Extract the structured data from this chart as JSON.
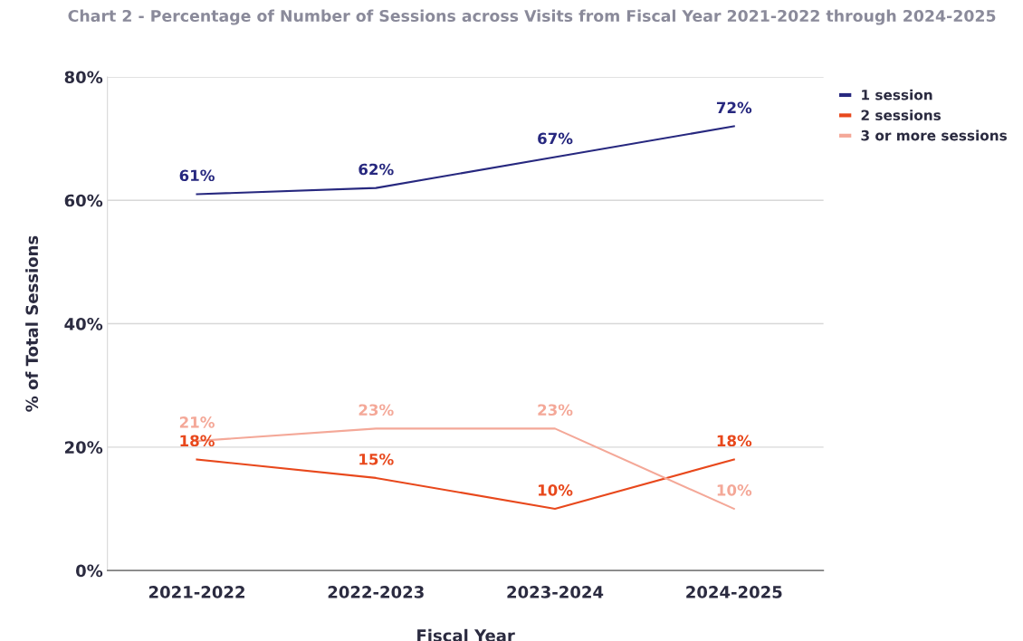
{
  "chart_data": {
    "type": "line",
    "title": "Chart 2 - Percentage of Number of Sessions across Visits from Fiscal Year 2021-2022 through 2024-2025",
    "xlabel": "Fiscal Year",
    "ylabel": "% of Total Sessions",
    "categories": [
      "2021-2022",
      "2022-2023",
      "2023-2024",
      "2024-2025"
    ],
    "series": [
      {
        "name": "1 session",
        "color": "#27287f",
        "values": [
          61,
          62,
          67,
          72
        ],
        "value_labels": [
          "61%",
          "62%",
          "67%",
          "72%"
        ]
      },
      {
        "name": "2 sessions",
        "color": "#e8481c",
        "values": [
          18,
          15,
          10,
          18
        ],
        "value_labels": [
          "18%",
          "15%",
          "10%",
          "18%"
        ]
      },
      {
        "name": "3 or more sessions",
        "color": "#f4a898",
        "values": [
          21,
          23,
          23,
          10
        ],
        "value_labels": [
          "21%",
          "23%",
          "23%",
          "10%"
        ]
      }
    ],
    "ylim": [
      0,
      80
    ],
    "yticks": [
      {
        "value": 0,
        "label": "0%"
      },
      {
        "value": 20,
        "label": "20%"
      },
      {
        "value": 40,
        "label": "40%"
      },
      {
        "value": 60,
        "label": "60%"
      },
      {
        "value": 80,
        "label": "80%"
      }
    ],
    "grid": "y",
    "legend": "top right",
    "marker": "none",
    "line_style": "solid"
  }
}
